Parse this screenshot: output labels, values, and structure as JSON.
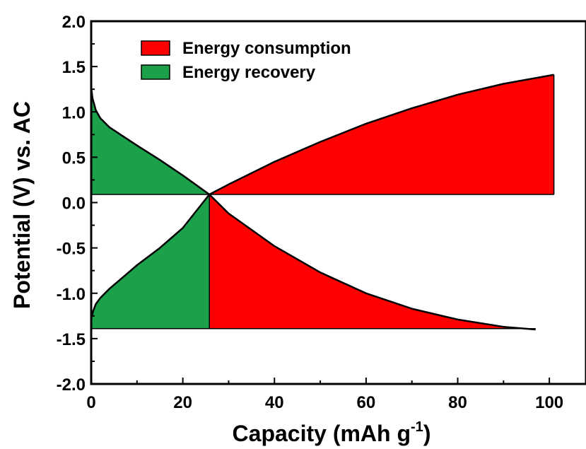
{
  "chart_data": {
    "type": "area",
    "title": "",
    "xlabel": "Capacity (mAh g",
    "xlabel_superscript": "-1",
    "xlabel_suffix": ")",
    "ylabel": "Potential (V) vs. AC",
    "xlim": [
      0,
      108
    ],
    "ylim": [
      -2.0,
      2.0
    ],
    "x_ticks": [
      "0",
      "20",
      "40",
      "60",
      "80",
      "100"
    ],
    "x_tick_values": [
      0,
      20,
      40,
      60,
      80,
      100
    ],
    "y_ticks": [
      "-2.0",
      "-1.5",
      "-1.0",
      "-0.5",
      "0.0",
      "0.5",
      "1.0",
      "1.5",
      "2.0"
    ],
    "y_tick_values": [
      -2.0,
      -1.5,
      -1.0,
      -0.5,
      0.0,
      0.5,
      1.0,
      1.5,
      2.0
    ],
    "baselines": {
      "upper": 0.09,
      "lower": -1.39
    },
    "crossover": {
      "x": 25.8,
      "y": 0.09
    },
    "legend": {
      "placement": "top-left"
    },
    "series": [
      {
        "name": "Energy consumption",
        "color": "#ff0000",
        "regions": [
          {
            "baseline": 0.09,
            "x": [
              25.8,
              30,
              40,
              50,
              60,
              70,
              80,
              90,
              101
            ],
            "y": [
              0.09,
              0.2,
              0.45,
              0.67,
              0.87,
              1.04,
              1.19,
              1.31,
              1.41
            ]
          },
          {
            "baseline": -1.39,
            "x": [
              25.8,
              30,
              40,
              50,
              60,
              70,
              80,
              90,
              97
            ],
            "y": [
              0.09,
              -0.12,
              -0.48,
              -0.77,
              -1.0,
              -1.17,
              -1.29,
              -1.37,
              -1.4
            ]
          }
        ]
      },
      {
        "name": "Energy recovery",
        "color": "#1aa14a",
        "regions": [
          {
            "baseline": 0.09,
            "x": [
              0,
              0.3,
              1,
              2,
              4,
              7,
              10,
              15,
              20,
              25.8
            ],
            "y": [
              1.27,
              1.15,
              1.02,
              0.93,
              0.83,
              0.73,
              0.63,
              0.47,
              0.3,
              0.09
            ]
          },
          {
            "baseline": -1.39,
            "x": [
              0,
              0.4,
              1,
              2,
              4,
              7,
              10,
              15,
              20,
              25.8
            ],
            "y": [
              -1.28,
              -1.2,
              -1.12,
              -1.05,
              -0.95,
              -0.82,
              -0.69,
              -0.5,
              -0.28,
              0.09
            ]
          }
        ]
      }
    ]
  }
}
